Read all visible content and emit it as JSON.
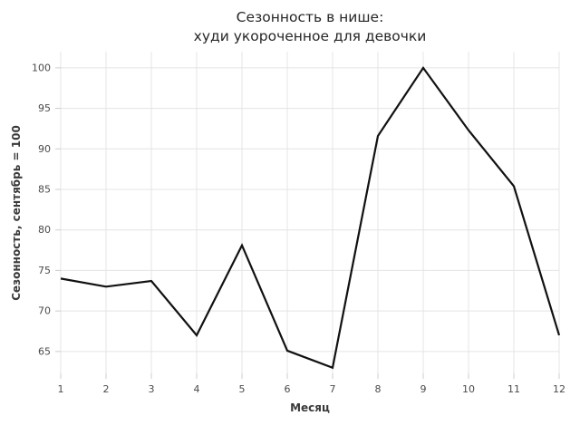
{
  "title": {
    "line1": "Сезонность в нише:",
    "line2": "худи укороченное для девочки"
  },
  "chart_data": {
    "type": "line",
    "title": "Сезонность в нише: худи укороченное для девочки",
    "xlabel": "Месяц",
    "ylabel": "Сезонность, сентябрь = 100",
    "x": [
      1,
      2,
      3,
      4,
      5,
      6,
      7,
      8,
      9,
      10,
      11,
      12
    ],
    "values": [
      74.0,
      73.0,
      73.7,
      67.0,
      78.1,
      65.1,
      63.0,
      91.6,
      100.0,
      92.3,
      85.4,
      67.0
    ],
    "series_name": "Сезонность",
    "xticks": [
      1,
      2,
      3,
      4,
      5,
      6,
      7,
      8,
      9,
      10,
      11,
      12
    ],
    "yticks": [
      65,
      70,
      75,
      80,
      85,
      90,
      95,
      100
    ],
    "xlim": [
      1,
      12
    ],
    "ylim": [
      62.3,
      102.0
    ],
    "grid": true,
    "legend": false,
    "line_color": "#111111",
    "grid_color": "#e4e4e4",
    "tick_color": "#cccccc",
    "tick_label_color": "#4a4a4a",
    "background": "#ffffff"
  }
}
